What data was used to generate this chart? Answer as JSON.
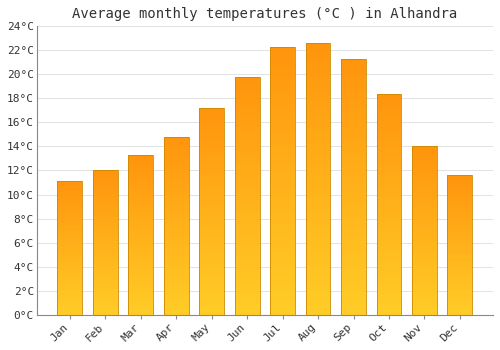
{
  "months": [
    "Jan",
    "Feb",
    "Mar",
    "Apr",
    "May",
    "Jun",
    "Jul",
    "Aug",
    "Sep",
    "Oct",
    "Nov",
    "Dec"
  ],
  "values": [
    11.1,
    12.0,
    13.3,
    14.8,
    17.2,
    19.8,
    22.3,
    22.6,
    21.3,
    18.4,
    14.0,
    11.6
  ],
  "bar_color_bottom": "#FFC020",
  "bar_color_top": "#FFB030",
  "bar_color_mid": "#FFCC40",
  "bar_edge_color": "#CC8800",
  "title": "Average monthly temperatures (°C ) in Alhandra",
  "ylim": [
    0,
    24
  ],
  "yticks": [
    0,
    2,
    4,
    6,
    8,
    10,
    12,
    14,
    16,
    18,
    20,
    22,
    24
  ],
  "ytick_labels": [
    "0°C",
    "2°C",
    "4°C",
    "6°C",
    "8°C",
    "10°C",
    "12°C",
    "14°C",
    "16°C",
    "18°C",
    "20°C",
    "22°C",
    "24°C"
  ],
  "background_color": "#FFFFFF",
  "grid_color": "#DDDDDD",
  "title_fontsize": 10,
  "tick_fontsize": 8,
  "bar_width": 0.7
}
